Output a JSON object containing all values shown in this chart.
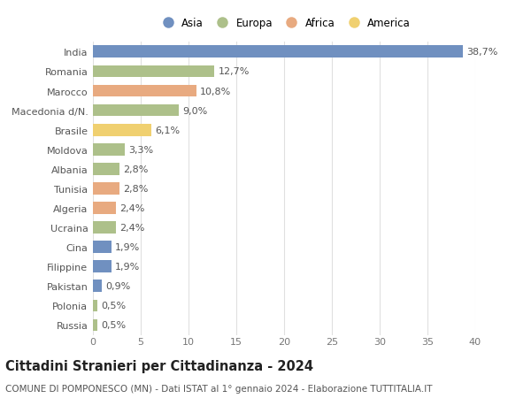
{
  "countries": [
    "India",
    "Romania",
    "Marocco",
    "Macedonia d/N.",
    "Brasile",
    "Moldova",
    "Albania",
    "Tunisia",
    "Algeria",
    "Ucraina",
    "Cina",
    "Filippine",
    "Pakistan",
    "Polonia",
    "Russia"
  ],
  "values": [
    38.7,
    12.7,
    10.8,
    9.0,
    6.1,
    3.3,
    2.8,
    2.8,
    2.4,
    2.4,
    1.9,
    1.9,
    0.9,
    0.5,
    0.5
  ],
  "labels": [
    "38,7%",
    "12,7%",
    "10,8%",
    "9,0%",
    "6,1%",
    "3,3%",
    "2,8%",
    "2,8%",
    "2,4%",
    "2,4%",
    "1,9%",
    "1,9%",
    "0,9%",
    "0,5%",
    "0,5%"
  ],
  "continents": [
    "Asia",
    "Europa",
    "Africa",
    "Europa",
    "America",
    "Europa",
    "Europa",
    "Africa",
    "Africa",
    "Europa",
    "Asia",
    "Asia",
    "Asia",
    "Europa",
    "Europa"
  ],
  "colors": {
    "Asia": "#7090c0",
    "Europa": "#adc08a",
    "Africa": "#e8aa80",
    "America": "#f0d070"
  },
  "title": "Cittadini Stranieri per Cittadinanza - 2024",
  "subtitle": "COMUNE DI POMPONESCO (MN) - Dati ISTAT al 1° gennaio 2024 - Elaborazione TUTTITALIA.IT",
  "xlim": [
    0,
    40
  ],
  "xticks": [
    0,
    5,
    10,
    15,
    20,
    25,
    30,
    35,
    40
  ],
  "bg_color": "#ffffff",
  "grid_color": "#e0e0e0",
  "bar_height": 0.62,
  "label_fontsize": 8,
  "tick_fontsize": 8,
  "ytick_fontsize": 8,
  "title_fontsize": 10.5,
  "subtitle_fontsize": 7.5,
  "legend_fontsize": 8.5
}
